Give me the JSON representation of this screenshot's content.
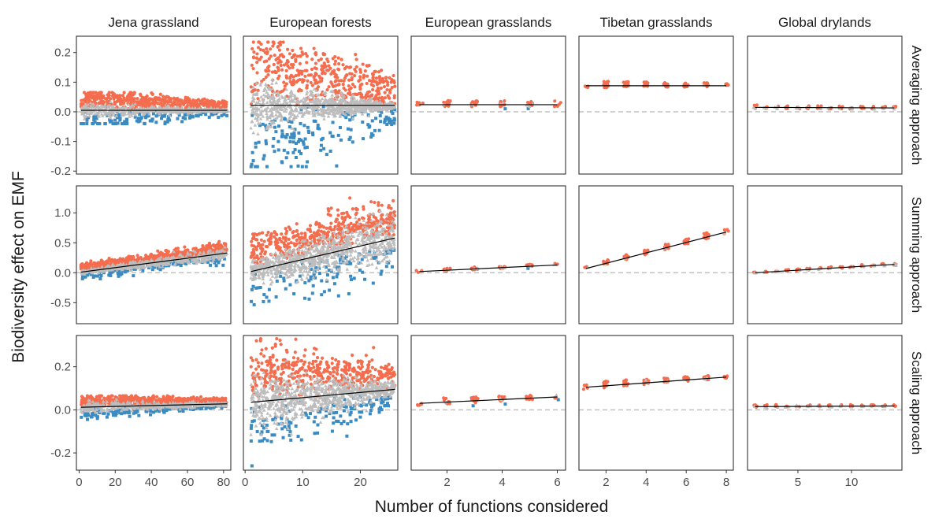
{
  "figure": {
    "ylabel": "Biodiversity effect on EMF",
    "xlabel": "Number of functions considered",
    "colors": {
      "positive": "#f46d4e",
      "negative": "#3b8bc2",
      "neutral": "#bdbdbd",
      "fit_line": "#000000",
      "zero_line": "#bdbdbd",
      "panel_border": "#333333",
      "text": "#1a1a1a",
      "tick_text": "#4d4d4d"
    }
  },
  "chart_data": {
    "type": "scatter",
    "facet_columns": [
      "Jena grassland",
      "European forests",
      "European grasslands",
      "Tibetan grasslands",
      "Global drylands"
    ],
    "facet_rows": [
      "Averaging approach",
      "Summing approach",
      "Scaling approach"
    ],
    "shared_y_within_row": true,
    "shared_x_within_column": true,
    "rows": [
      {
        "name": "Averaging approach",
        "ylim": [
          -0.21,
          0.255
        ],
        "yticks": [
          -0.2,
          -0.1,
          0.0,
          0.1,
          0.2
        ],
        "ytick_labels": [
          "-0.2",
          "-0.1",
          "0.0",
          "0.1",
          "0.2"
        ]
      },
      {
        "name": "Summing approach",
        "ylim": [
          -0.85,
          1.45
        ],
        "yticks": [
          -0.5,
          0.0,
          0.5,
          1.0
        ],
        "ytick_labels": [
          "-0.5",
          "0.0",
          "0.5",
          "1.0"
        ]
      },
      {
        "name": "Scaling approach",
        "ylim": [
          -0.28,
          0.345
        ],
        "yticks": [
          -0.2,
          0.0,
          0.2
        ],
        "ytick_labels": [
          "-0.2",
          "0.0",
          "0.2"
        ]
      }
    ],
    "columns": [
      {
        "name": "Jena grassland",
        "xlim": [
          -1.5,
          84
        ],
        "xticks": [
          0,
          20,
          40,
          60,
          80
        ],
        "xtick_labels": [
          "0",
          "20",
          "40",
          "60",
          "80"
        ]
      },
      {
        "name": "European forests",
        "xlim": [
          -0.3,
          26.5
        ],
        "xticks": [
          0,
          10,
          20
        ],
        "xtick_labels": [
          "0",
          "10",
          "20"
        ]
      },
      {
        "name": "European grasslands",
        "xlim": [
          0.7,
          6.3
        ],
        "xticks": [
          2,
          4,
          6
        ],
        "xtick_labels": [
          "2",
          "4",
          "6"
        ]
      },
      {
        "name": "Tibetan grasslands",
        "xlim": [
          0.65,
          8.35
        ],
        "xticks": [
          2,
          4,
          6,
          8
        ],
        "xtick_labels": [
          "2",
          "4",
          "6",
          "8"
        ]
      },
      {
        "name": "Global drylands",
        "xlim": [
          0.3,
          14.7
        ],
        "xticks": [
          5,
          10
        ],
        "xtick_labels": [
          "5",
          "10"
        ]
      }
    ],
    "fit_lines": [
      [
        {
          "x": [
            1,
            82
          ],
          "y": [
            0.005,
            0.005
          ]
        },
        {
          "x": [
            1,
            26
          ],
          "y": [
            0.022,
            0.022
          ]
        },
        {
          "x": [
            1,
            6
          ],
          "y": [
            0.024,
            0.024
          ]
        },
        {
          "x": [
            1,
            8
          ],
          "y": [
            0.088,
            0.088
          ]
        },
        {
          "x": [
            1,
            14
          ],
          "y": [
            0.015,
            0.013
          ]
        }
      ],
      [
        {
          "x": [
            1,
            82
          ],
          "y": [
            0.01,
            0.33
          ]
        },
        {
          "x": [
            1,
            26
          ],
          "y": [
            0.02,
            0.58
          ]
        },
        {
          "x": [
            1,
            6
          ],
          "y": [
            0.02,
            0.13
          ]
        },
        {
          "x": [
            1,
            8
          ],
          "y": [
            0.07,
            0.68
          ]
        },
        {
          "x": [
            1,
            14
          ],
          "y": [
            0.0,
            0.14
          ]
        }
      ],
      [
        {
          "x": [
            1,
            82
          ],
          "y": [
            0.012,
            0.028
          ]
        },
        {
          "x": [
            1,
            26
          ],
          "y": [
            0.035,
            0.095
          ]
        },
        {
          "x": [
            1,
            6
          ],
          "y": [
            0.03,
            0.06
          ]
        },
        {
          "x": [
            1,
            8
          ],
          "y": [
            0.105,
            0.152
          ]
        },
        {
          "x": [
            1,
            14
          ],
          "y": [
            0.015,
            0.018
          ]
        }
      ]
    ],
    "panels": [
      [
        {
          "kind": "dense",
          "xmax": 82,
          "center": [
            0.005,
            0.005
          ],
          "spread": [
            0.03,
            0.004
          ],
          "outlier_span": 0.055,
          "max_outlier": 0.065,
          "min_outlier": -0.04,
          "pos_frac": 0.45,
          "neg_frac": 0.12
        },
        {
          "kind": "dense",
          "xmax": 26,
          "center": [
            0.02,
            0.02
          ],
          "spread": [
            0.09,
            0.01
          ],
          "outlier_span": 0.2,
          "max_outlier": 0.235,
          "min_outlier": -0.185,
          "pos_frac": 0.32,
          "neg_frac": 0.1
        },
        {
          "kind": "sparse",
          "xmax": 6,
          "center": [
            0.024,
            0.024
          ],
          "spread": [
            0.01,
            0.01
          ],
          "outlier_span": 0.03,
          "max_outlier": 0.055,
          "min_outlier": -0.03,
          "pos_frac": 0.85,
          "neg_frac": 0.05
        },
        {
          "kind": "sparse",
          "xmax": 8,
          "center": [
            0.088,
            0.088
          ],
          "spread": [
            0.01,
            0.006
          ],
          "outlier_span": 0.02,
          "max_outlier": 0.135,
          "min_outlier": 0.06,
          "pos_frac": 0.98,
          "neg_frac": 0.0
        },
        {
          "kind": "sparse",
          "xmax": 14,
          "center": [
            0.014,
            0.012
          ],
          "spread": [
            0.006,
            0.004
          ],
          "outlier_span": 0.01,
          "max_outlier": 0.025,
          "min_outlier": -0.005,
          "pos_frac": 0.7,
          "neg_frac": 0.0
        }
      ],
      [
        {
          "kind": "dense",
          "xmax": 82,
          "center": [
            0.01,
            0.33
          ],
          "spread": [
            0.04,
            0.12
          ],
          "outlier_span": 0.12,
          "max_outlier": 0.52,
          "min_outlier": -0.24,
          "pos_frac": 0.5,
          "neg_frac": 0.1
        },
        {
          "kind": "dense",
          "xmax": 26,
          "center": [
            0.02,
            0.58
          ],
          "spread": [
            0.2,
            0.45
          ],
          "outlier_span": 0.5,
          "max_outlier": 1.38,
          "min_outlier": -0.8,
          "pos_frac": 0.35,
          "neg_frac": 0.08
        },
        {
          "kind": "sparse",
          "xmax": 6,
          "center": [
            0.02,
            0.13
          ],
          "spread": [
            0.02,
            0.02
          ],
          "outlier_span": 0.05,
          "max_outlier": 0.18,
          "min_outlier": -0.05,
          "pos_frac": 0.85,
          "neg_frac": 0.05
        },
        {
          "kind": "sparse",
          "xmax": 8,
          "center": [
            0.07,
            0.68
          ],
          "spread": [
            0.03,
            0.05
          ],
          "outlier_span": 0.06,
          "max_outlier": 0.72,
          "min_outlier": 0.0,
          "pos_frac": 0.97,
          "neg_frac": 0.0
        },
        {
          "kind": "sparse",
          "xmax": 14,
          "center": [
            0.0,
            0.14
          ],
          "spread": [
            0.01,
            0.02
          ],
          "outlier_span": 0.02,
          "max_outlier": 0.17,
          "min_outlier": -0.02,
          "pos_frac": 0.75,
          "neg_frac": 0.0
        }
      ],
      [
        {
          "kind": "dense",
          "xmax": 82,
          "center": [
            0.012,
            0.028
          ],
          "spread": [
            0.03,
            0.01
          ],
          "outlier_span": 0.035,
          "max_outlier": 0.065,
          "min_outlier": -0.045,
          "pos_frac": 0.5,
          "neg_frac": 0.12
        },
        {
          "kind": "dense",
          "xmax": 26,
          "center": [
            0.035,
            0.095
          ],
          "spread": [
            0.14,
            0.04
          ],
          "outlier_span": 0.17,
          "max_outlier": 0.33,
          "min_outlier": -0.26,
          "pos_frac": 0.32,
          "neg_frac": 0.1
        },
        {
          "kind": "sparse",
          "xmax": 6,
          "center": [
            0.03,
            0.06
          ],
          "spread": [
            0.015,
            0.01
          ],
          "outlier_span": 0.03,
          "max_outlier": 0.085,
          "min_outlier": -0.035,
          "pos_frac": 0.85,
          "neg_frac": 0.05
        },
        {
          "kind": "sparse",
          "xmax": 8,
          "center": [
            0.105,
            0.152
          ],
          "spread": [
            0.015,
            0.008
          ],
          "outlier_span": 0.02,
          "max_outlier": 0.16,
          "min_outlier": 0.065,
          "pos_frac": 0.97,
          "neg_frac": 0.0
        },
        {
          "kind": "sparse",
          "xmax": 14,
          "center": [
            0.015,
            0.018
          ],
          "spread": [
            0.006,
            0.004
          ],
          "outlier_span": 0.01,
          "max_outlier": 0.03,
          "min_outlier": -0.005,
          "pos_frac": 0.7,
          "neg_frac": 0.0
        }
      ]
    ],
    "grid": false,
    "zero_line": "dashed",
    "legend": "none"
  }
}
